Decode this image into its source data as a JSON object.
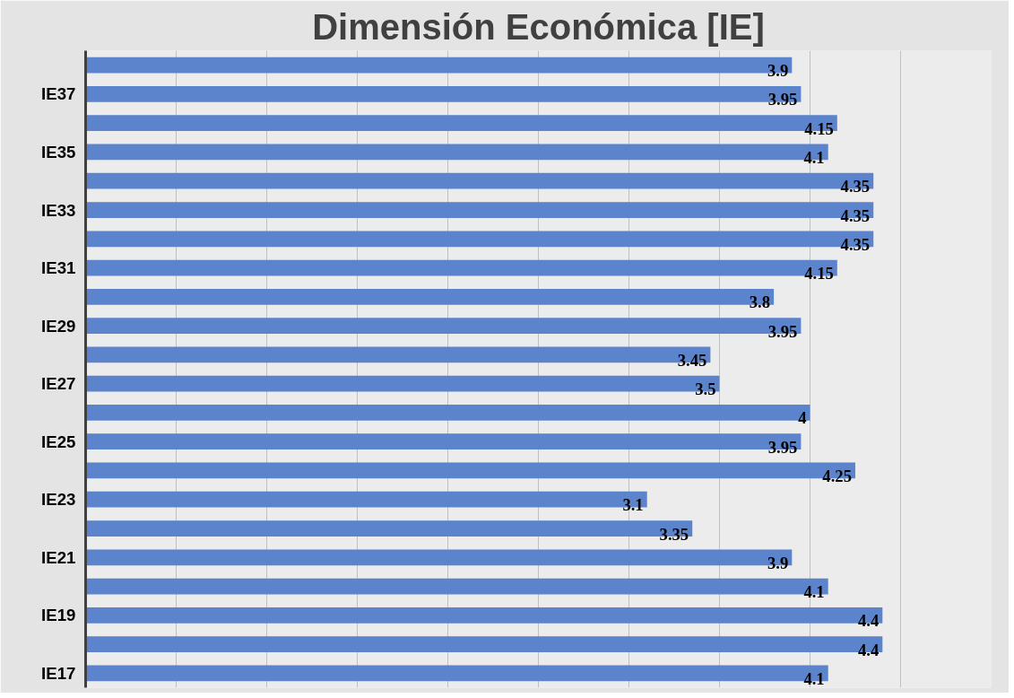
{
  "chart_data": {
    "type": "bar",
    "orientation": "horizontal",
    "title": "Dimensión Económica [IE]",
    "categories": [
      null,
      "IE37",
      null,
      "IE35",
      null,
      "IE33",
      null,
      "IE31",
      null,
      "IE29",
      null,
      "IE27",
      null,
      "IE25",
      null,
      "IE23",
      null,
      "IE21",
      null,
      "IE19",
      null,
      "IE17"
    ],
    "values": [
      3.9,
      3.95,
      4.15,
      4.1,
      4.35,
      4.35,
      4.35,
      4.15,
      3.8,
      3.95,
      3.45,
      3.5,
      4,
      3.95,
      4.25,
      3.1,
      3.35,
      3.9,
      4.1,
      4.4,
      4.4,
      4.1
    ],
    "color": "#5b84cc",
    "xlim": [
      0,
      5
    ],
    "xticks": [
      {
        "value": 0,
        "label": null
      },
      {
        "value": 0.5,
        "label": null
      },
      {
        "value": 1,
        "label": null
      },
      {
        "value": 1.5,
        "label": null
      },
      {
        "value": 2,
        "label": null
      },
      {
        "value": 2.5,
        "label": null
      },
      {
        "value": 3,
        "label": null
      },
      {
        "value": 3.5,
        "label": null
      },
      {
        "value": 4,
        "label": null
      },
      {
        "value": 4.5,
        "label": null
      },
      {
        "value": 5,
        "label": null
      }
    ],
    "grid": "x",
    "tick_labels": "y",
    "data_labels": true
  }
}
